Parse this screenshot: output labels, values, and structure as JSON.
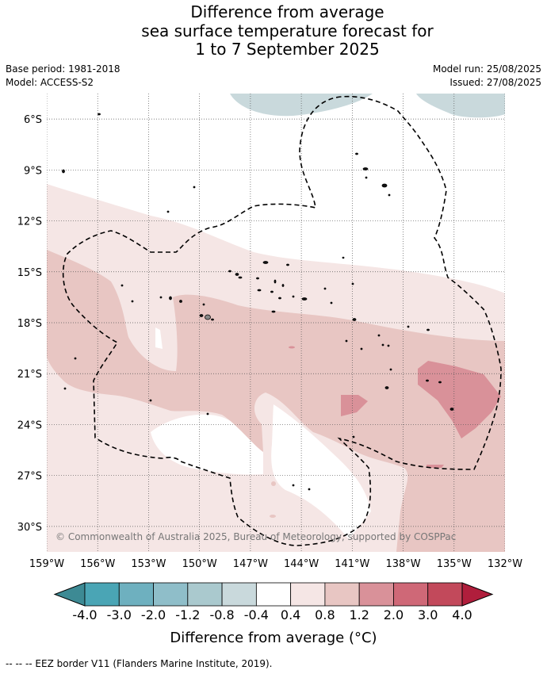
{
  "title": {
    "line1": "Difference from average",
    "line2": "sea surface temperature forecast for",
    "line3": "1 to 7 September 2025"
  },
  "meta": {
    "base_period": "Base period: 1981-2018",
    "model": "Model: ACCESS-S2",
    "model_run": "Model run: 25/08/2025",
    "issued": "Issued: 27/08/2025"
  },
  "map": {
    "lon_range": [
      -159,
      -132
    ],
    "lat_range": [
      -31.5,
      -4.5
    ],
    "lat_ticks": [
      "6°S",
      "9°S",
      "12°S",
      "15°S",
      "18°S",
      "21°S",
      "24°S",
      "27°S",
      "30°S"
    ],
    "lon_ticks": [
      "159°W",
      "156°W",
      "153°W",
      "150°W",
      "147°W",
      "144°W",
      "141°W",
      "138°W",
      "135°W",
      "132°W"
    ],
    "grid": true,
    "copyright": "© Commonwealth of Australia 2025, Bureau of Meteorology, supported by COSPPac"
  },
  "colorbar": {
    "title": "Difference from average (°C)",
    "labels": [
      "-4.0",
      "-3.0",
      "-2.0",
      "-1.2",
      "-0.8",
      "-0.4",
      "0.4",
      "0.8",
      "1.2",
      "2.0",
      "3.0",
      "4.0"
    ],
    "colors": {
      "under": "#3d8a94",
      "c1": "#4aa5b5",
      "c2": "#6eb0bf",
      "c3": "#8fbec9",
      "c4": "#aac9ce",
      "c5": "#c9d9dc",
      "c6": "#ffffff",
      "c7": "#f5e6e5",
      "c8": "#e8c6c3",
      "c9": "#d99199",
      "c10": "#cf6877",
      "c11": "#c2495b",
      "over": "#b01e3c"
    }
  },
  "legend": {
    "eez": "--  --  -- EEZ border V11 (Flanders Marine Institute, 2019)."
  }
}
